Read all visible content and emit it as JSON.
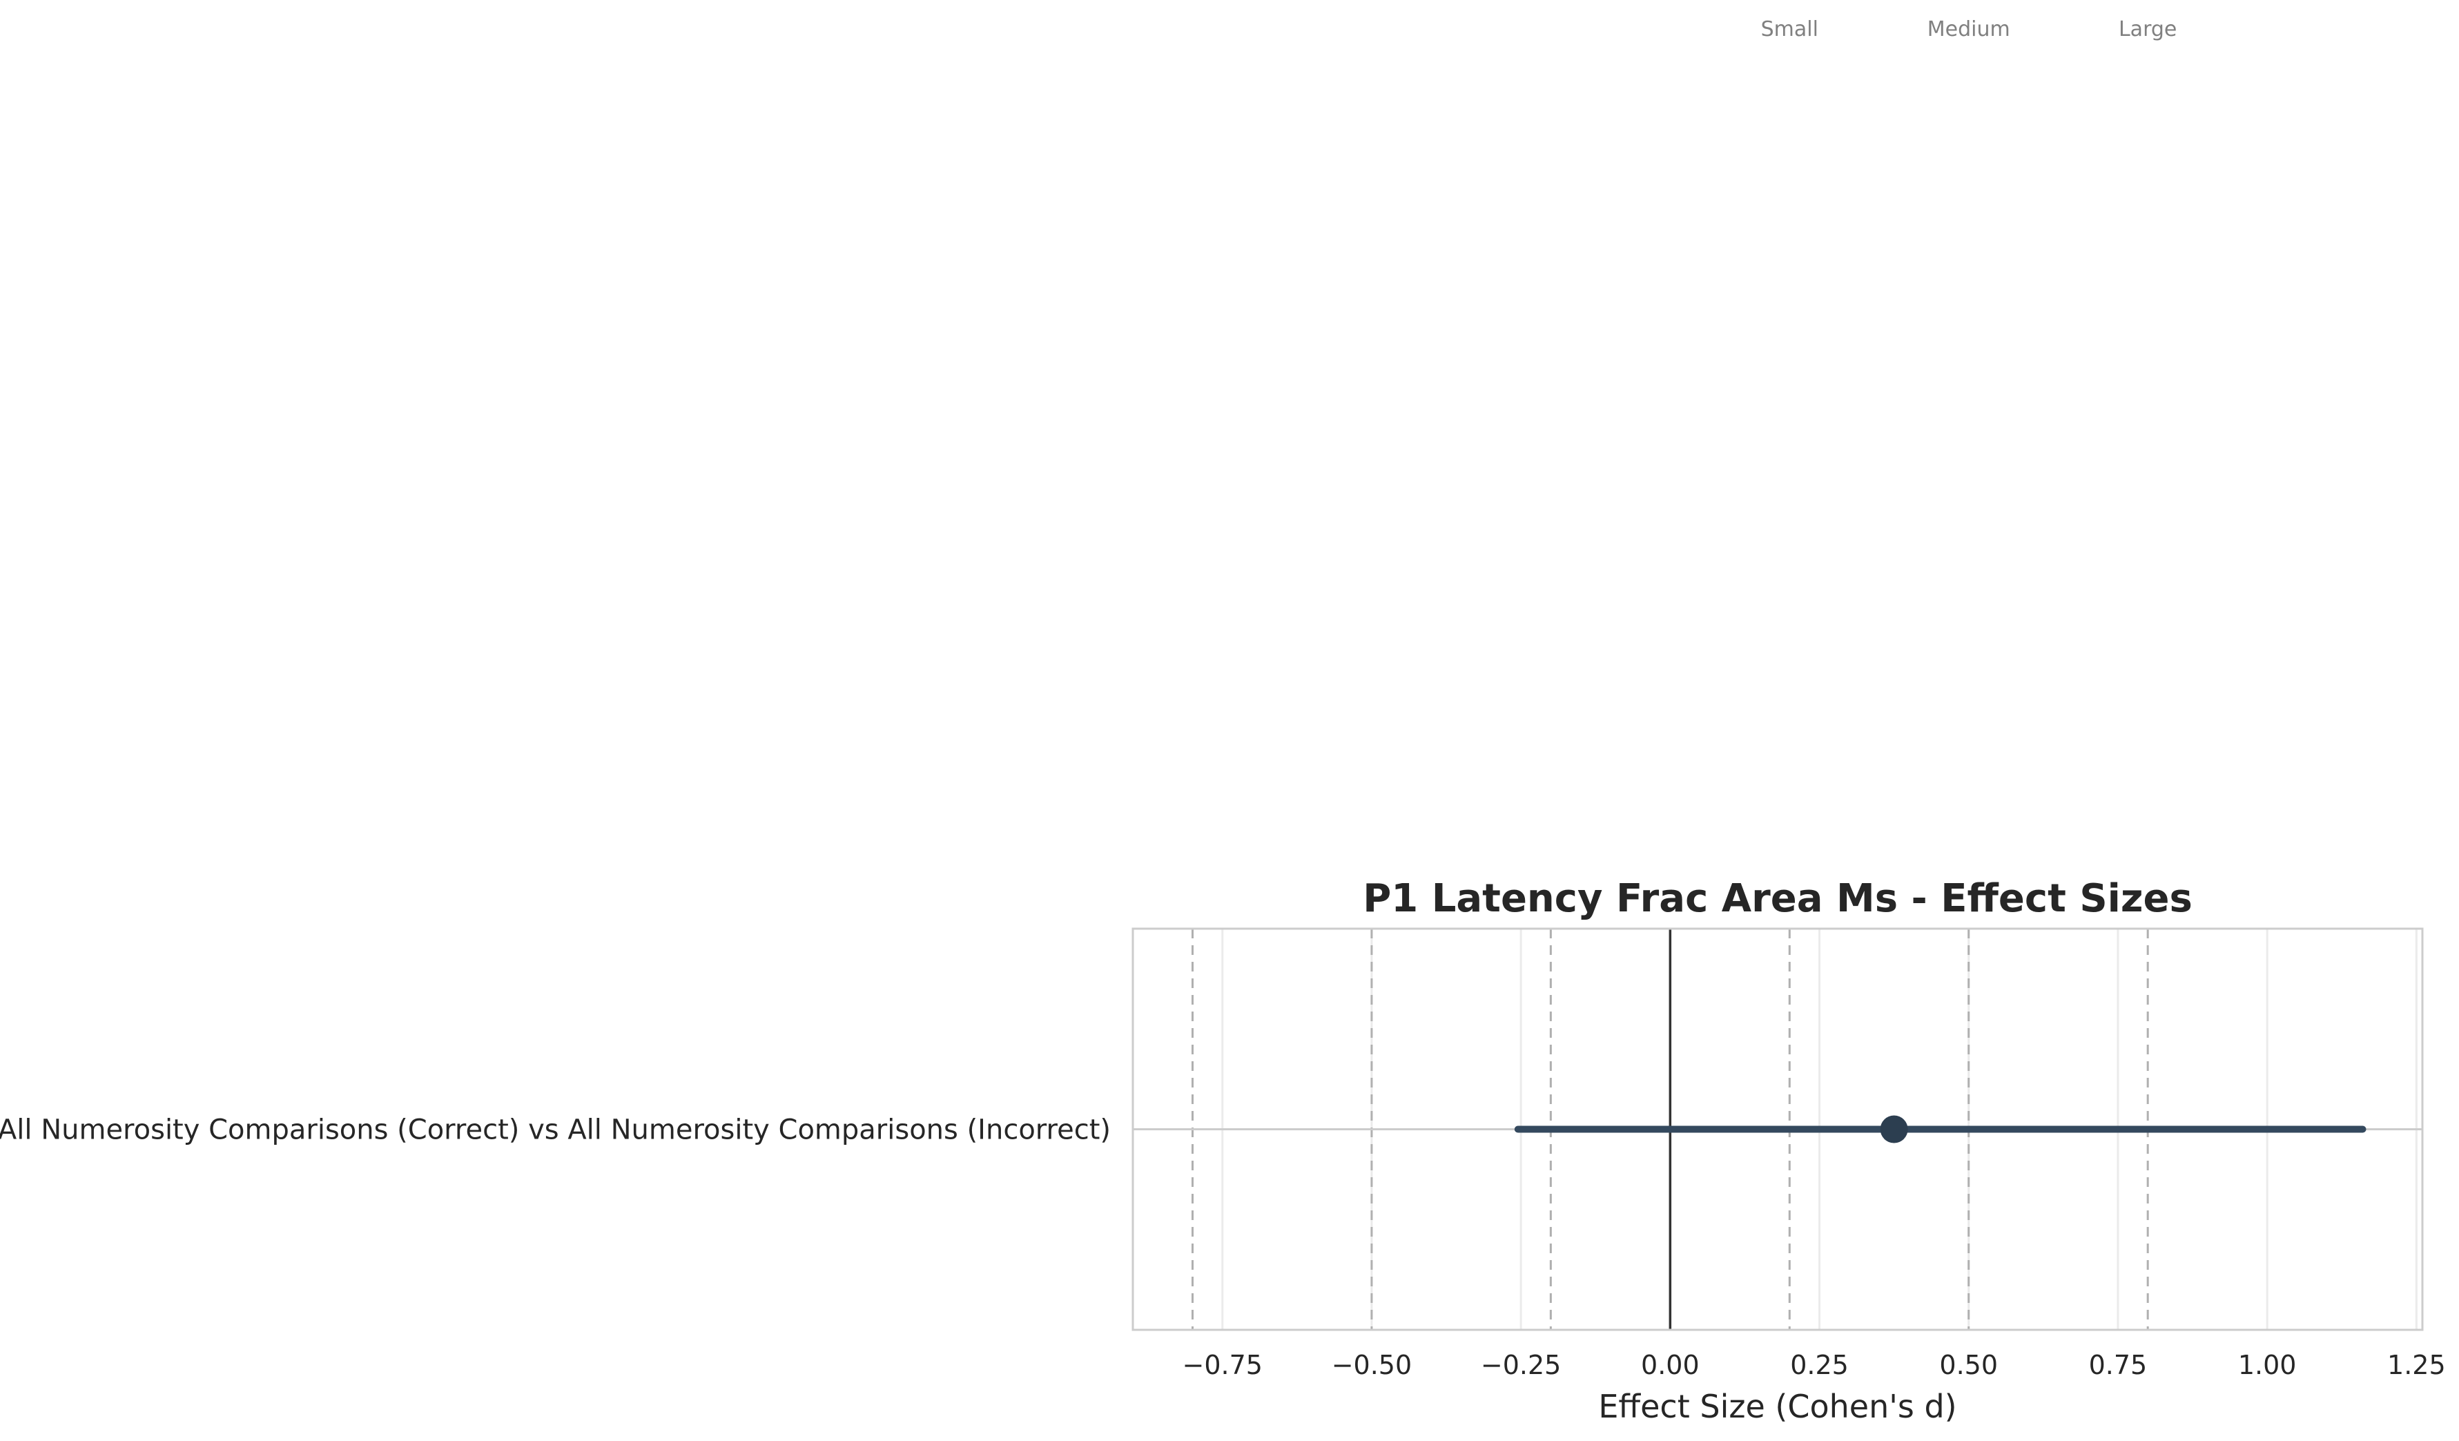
{
  "chart_data": {
    "type": "forest",
    "title": "P1 Latency Frac Area Ms - Effect Sizes",
    "xlabel": "Effect Size (Cohen's d)",
    "ylabel": "",
    "xlim": [
      -0.9,
      1.26
    ],
    "x_ticks": [
      -0.75,
      -0.5,
      -0.25,
      0.0,
      0.25,
      0.5,
      0.75,
      1.0,
      1.25
    ],
    "x_tick_labels": [
      "−0.75",
      "−0.50",
      "−0.25",
      "0.00",
      "0.25",
      "0.50",
      "0.75",
      "1.00",
      "1.25"
    ],
    "grid": true,
    "reference_line": 0.0,
    "thresholds": [
      {
        "label": "Small",
        "value": 0.2
      },
      {
        "label": "Medium",
        "value": 0.5
      },
      {
        "label": "Large",
        "value": 0.8
      },
      {
        "label": "",
        "value": -0.2
      },
      {
        "label": "",
        "value": -0.5
      },
      {
        "label": "",
        "value": -0.8
      }
    ],
    "rows": [
      {
        "label": "All Numerosity Comparisons (Correct) vs All Numerosity Comparisons (Incorrect)",
        "estimate": 0.375,
        "ci_low": -0.255,
        "ci_high": 1.16
      }
    ],
    "colors": {
      "point": "#2c3e50",
      "ci_line": "#34495e",
      "zero_line": "#333333",
      "threshold_line": "#b0b0b0",
      "grid": "#ebebeb",
      "axes_border": "#cccccc",
      "text": "#262626",
      "threshold_text": "#808080"
    }
  }
}
